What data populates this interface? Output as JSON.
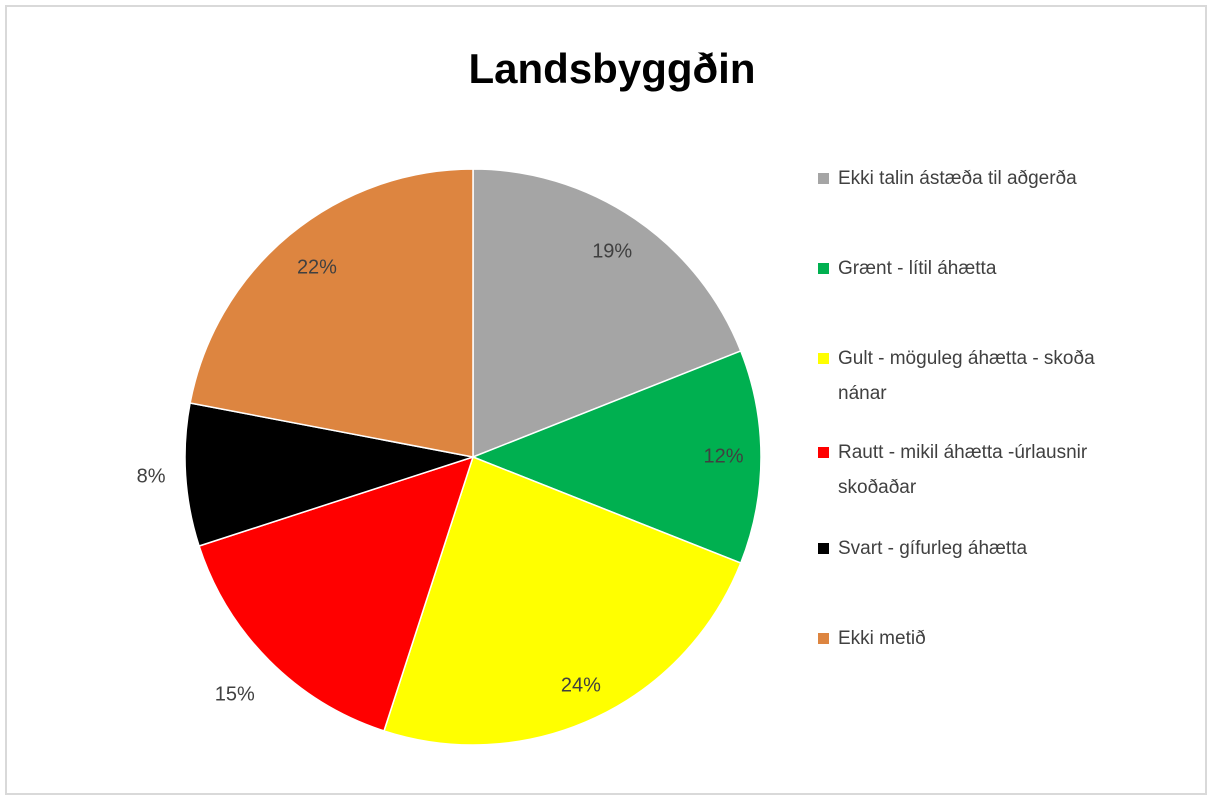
{
  "chart_data": {
    "type": "pie",
    "title": "Landsbyggðin",
    "categories": [
      "Ekki talin ástæða til aðgerða",
      "Grænt - lítil áhætta",
      "Gult - möguleg áhætta - skoða nánar",
      "Rautt - mikil áhætta -úrlausnir skoðaðar",
      "Svart - gífurleg áhætta",
      "Ekki metið"
    ],
    "values": [
      19,
      12,
      24,
      15,
      8,
      22
    ],
    "value_labels": [
      "19%",
      "12%",
      "24%",
      "15%",
      "8%",
      "22%"
    ],
    "colors": [
      "#a5a5a5",
      "#00b050",
      "#ffff00",
      "#ff0000",
      "#000000",
      "#dd8540"
    ],
    "legend": "right"
  }
}
